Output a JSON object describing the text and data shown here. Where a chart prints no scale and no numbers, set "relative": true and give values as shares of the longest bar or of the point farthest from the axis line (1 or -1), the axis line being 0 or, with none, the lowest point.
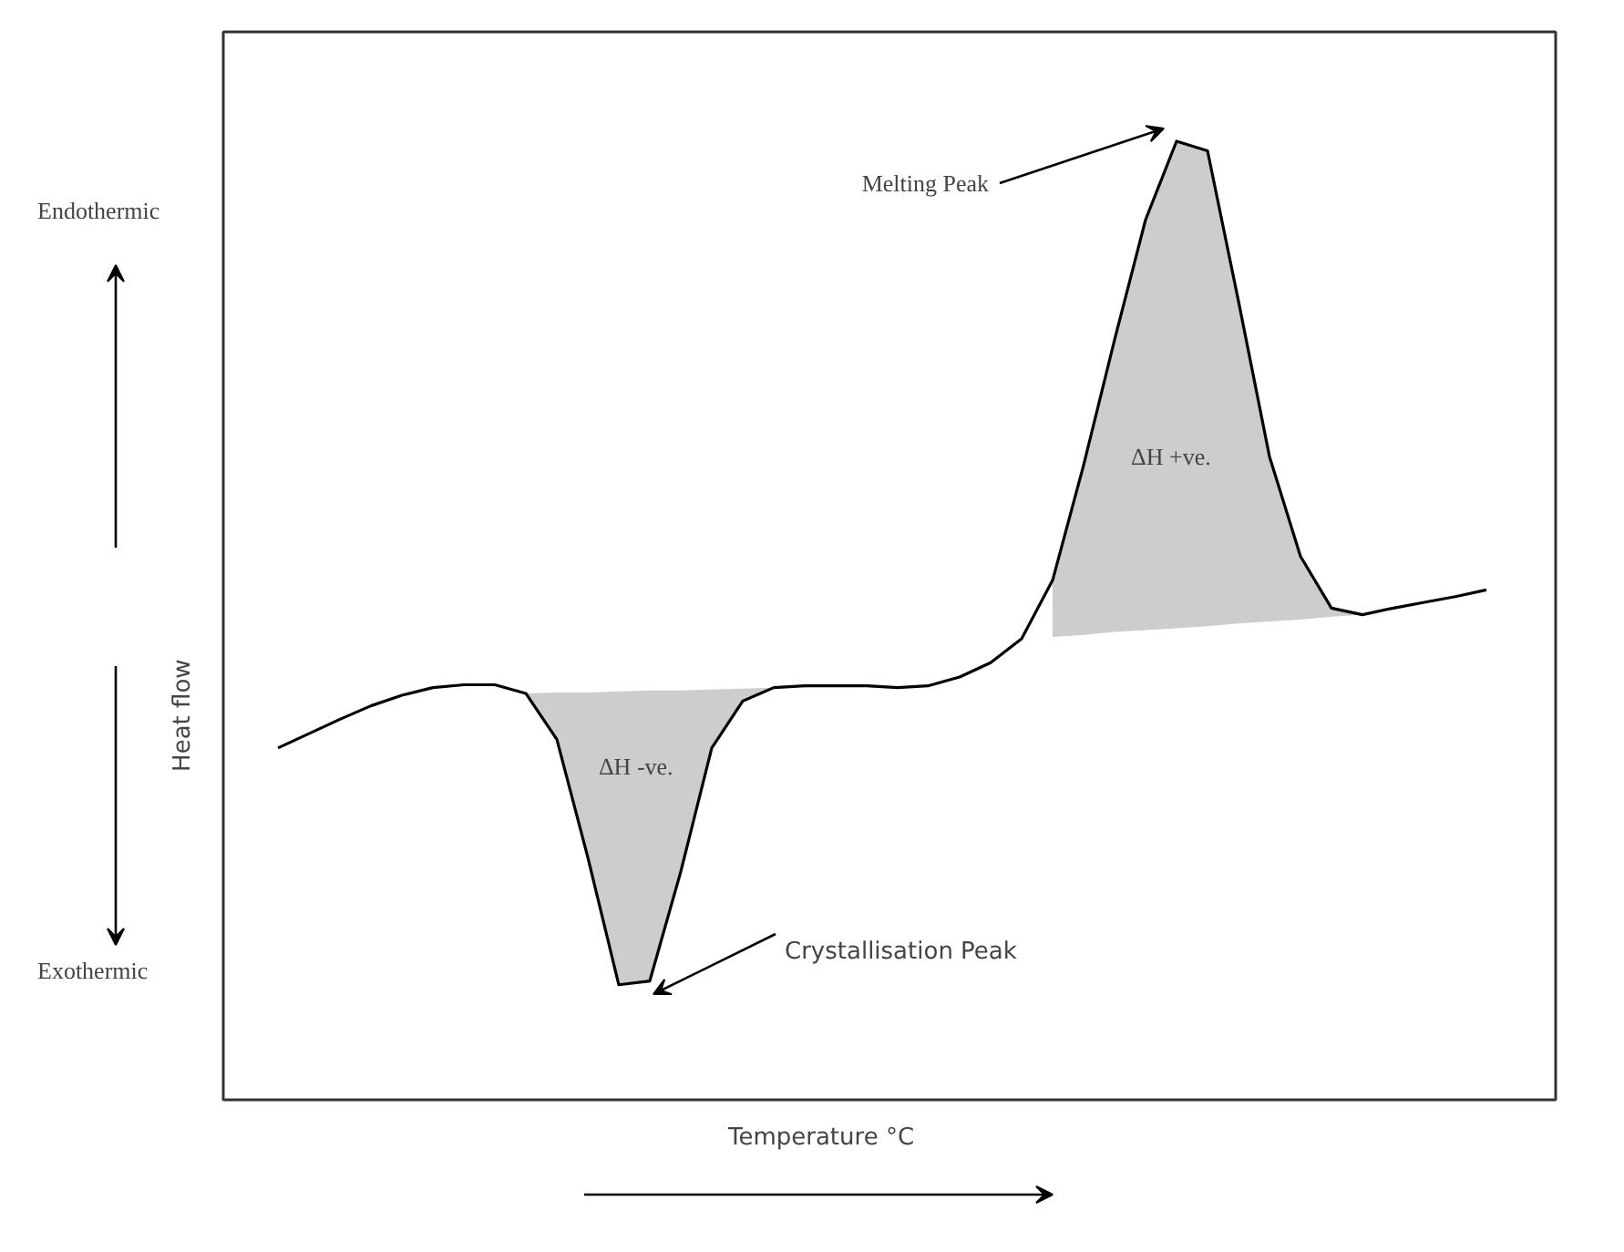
{
  "chart_data": {
    "type": "line",
    "relative": true,
    "xlabel": "Temperature °C",
    "ylabel": "Heat  flow",
    "categories": [
      null,
      null,
      null,
      null,
      null,
      null,
      null,
      null,
      null,
      null,
      null,
      null,
      null,
      null,
      null,
      null,
      null,
      null,
      null,
      null,
      null,
      null,
      null,
      null,
      null,
      null,
      null,
      null,
      null,
      null,
      null,
      null,
      null,
      null,
      null,
      null,
      null,
      null,
      null,
      null
    ],
    "series": [
      {
        "color": "#000000",
        "values": [
          0.367,
          0.382,
          0.397,
          0.411,
          0.422,
          0.43,
          0.433,
          0.433,
          0.424,
          0.376,
          0.253,
          0.12,
          0.124,
          0.238,
          0.367,
          0.416,
          0.43,
          0.432,
          0.432,
          0.432,
          0.43,
          0.432,
          0.441,
          0.456,
          0.481,
          0.542,
          0.662,
          0.793,
          0.918,
          1.0,
          0.99,
          0.833,
          0.671,
          0.567,
          0.513,
          0.506,
          0.513,
          0.519,
          0.525,
          0.532
        ],
        "lower": [
          null,
          null,
          null,
          null,
          null,
          null,
          null,
          null,
          0.424,
          0.376,
          0.253,
          0.12,
          0.124,
          0.238,
          0.367,
          0.416,
          0.43,
          null,
          null,
          null,
          null,
          null,
          null,
          null,
          null,
          0.483,
          0.485,
          0.488,
          0.49,
          0.492,
          0.494,
          0.497,
          0.499,
          0.501,
          0.504,
          0.506,
          null,
          null,
          null,
          null
        ],
        "upper": [
          null,
          null,
          null,
          null,
          null,
          null,
          null,
          null,
          0.424,
          0.425,
          0.425,
          0.426,
          0.427,
          0.427,
          0.428,
          0.429,
          0.43,
          null,
          null,
          null,
          null,
          null,
          null,
          null,
          null,
          0.542,
          0.662,
          0.793,
          0.918,
          1.0,
          0.99,
          0.833,
          0.671,
          0.567,
          0.513,
          0.506,
          null,
          null,
          null,
          null
        ]
      }
    ],
    "annotations": [
      "Endothermic",
      "Exothermic",
      "Melting Peak",
      "Crystallisation Peak",
      "ΔH  -ve.",
      "ΔH  +ve."
    ]
  }
}
